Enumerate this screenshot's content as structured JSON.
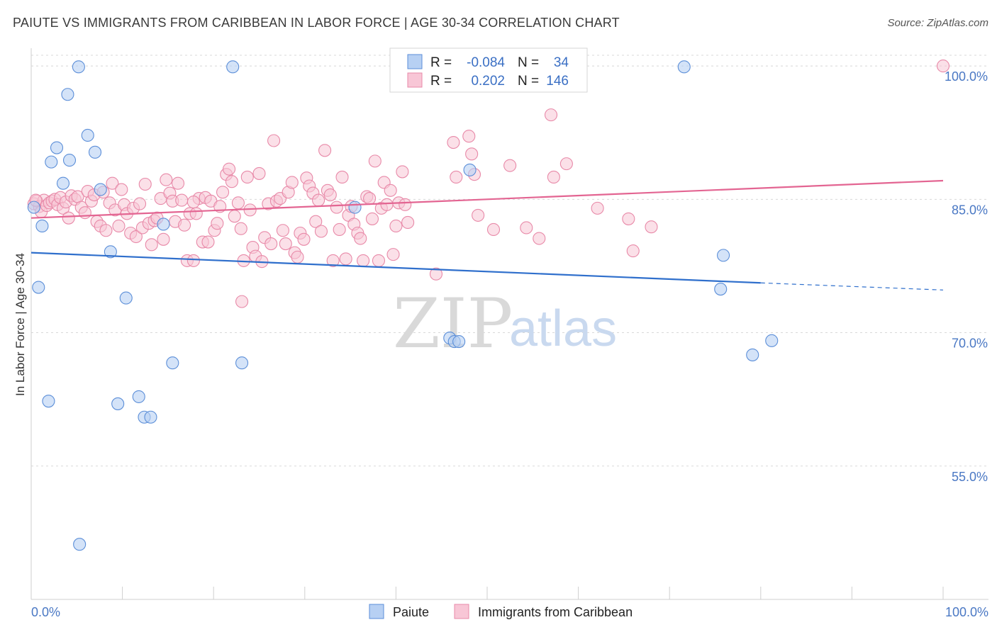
{
  "header": {
    "title": "PAIUTE VS IMMIGRANTS FROM CARIBBEAN IN LABOR FORCE | AGE 30-34 CORRELATION CHART",
    "source": "Source: ZipAtlas.com"
  },
  "watermark": {
    "zip": "ZIP",
    "atlas": "atlas"
  },
  "chart_data": {
    "type": "scatter",
    "title": "PAIUTE VS IMMIGRANTS FROM CARIBBEAN IN LABOR FORCE | AGE 30-34 CORRELATION CHART",
    "xlabel": "",
    "ylabel": "In Labor Force | Age 30-34",
    "xlim": [
      0,
      100
    ],
    "ylim": [
      40,
      102
    ],
    "x_tick_labels": [
      "0.0%",
      "100.0%"
    ],
    "y_ticks": [
      55,
      70,
      85,
      100
    ],
    "y_tick_labels": [
      "55.0%",
      "70.0%",
      "85.0%",
      "100.0%"
    ],
    "grid": true,
    "legend_position": "top-center",
    "legend": {
      "r_label": "R =",
      "n_label": "N =",
      "entries": [
        {
          "name": "Paiute",
          "r": "-0.084",
          "n": "34"
        },
        {
          "name": "Immigrants from Caribbean",
          "r": "0.202",
          "n": "146"
        }
      ]
    },
    "colors": {
      "paiute_fill": "#b7d0f3",
      "paiute_stroke": "#5b8ed8",
      "paiute_line": "#2f6fcc",
      "carib_fill": "#f8c6d6",
      "carib_stroke": "#e889a8",
      "carib_line": "#e36592",
      "tick_label": "#4a78c4",
      "grid": "#d8d8d8"
    },
    "series": [
      {
        "name": "Paiute",
        "trend": {
          "x0": 0,
          "y0": 79.0,
          "x1": 80,
          "y1": 75.6,
          "dash_to_x": 100,
          "dash_to_y": 74.8
        },
        "points": [
          [
            0.3,
            84.1
          ],
          [
            1.2,
            82.0
          ],
          [
            2.2,
            89.2
          ],
          [
            2.8,
            90.8
          ],
          [
            3.5,
            86.8
          ],
          [
            4.0,
            96.8
          ],
          [
            4.2,
            89.4
          ],
          [
            5.2,
            99.9
          ],
          [
            6.2,
            92.2
          ],
          [
            7.0,
            90.3
          ],
          [
            7.6,
            86.1
          ],
          [
            8.7,
            79.1
          ],
          [
            0.8,
            75.1
          ],
          [
            1.9,
            62.3
          ],
          [
            9.5,
            62.0
          ],
          [
            10.4,
            73.9
          ],
          [
            11.8,
            62.8
          ],
          [
            12.4,
            60.5
          ],
          [
            13.1,
            60.5
          ],
          [
            14.5,
            82.2
          ],
          [
            15.5,
            66.6
          ],
          [
            22.1,
            99.9
          ],
          [
            23.1,
            66.6
          ],
          [
            35.5,
            84.1
          ],
          [
            45.9,
            69.4
          ],
          [
            46.4,
            69.0
          ],
          [
            46.9,
            69.0
          ],
          [
            48.1,
            88.3
          ],
          [
            71.6,
            99.9
          ],
          [
            75.6,
            74.9
          ],
          [
            75.9,
            78.7
          ],
          [
            79.1,
            67.5
          ],
          [
            81.2,
            69.1
          ],
          [
            5.3,
            46.2
          ]
        ]
      },
      {
        "name": "Immigrants from Caribbean",
        "trend": {
          "x0": 0,
          "y0": 82.9,
          "x1": 100,
          "y1": 87.1
        },
        "points": [
          [
            0.3,
            84.5
          ],
          [
            0.6,
            84.8
          ],
          [
            0.9,
            84.2
          ],
          [
            1.1,
            83.6
          ],
          [
            1.4,
            84.9
          ],
          [
            1.7,
            84.3
          ],
          [
            2.0,
            84.6
          ],
          [
            2.3,
            84.8
          ],
          [
            2.6,
            85.0
          ],
          [
            2.9,
            84.4
          ],
          [
            3.2,
            85.2
          ],
          [
            3.5,
            84.0
          ],
          [
            3.8,
            84.7
          ],
          [
            4.1,
            82.9
          ],
          [
            4.4,
            85.4
          ],
          [
            4.8,
            85.0
          ],
          [
            5.1,
            85.3
          ],
          [
            5.5,
            84.1
          ],
          [
            5.9,
            83.5
          ],
          [
            6.2,
            85.9
          ],
          [
            6.6,
            84.8
          ],
          [
            6.9,
            85.5
          ],
          [
            7.2,
            82.5
          ],
          [
            7.6,
            82.0
          ],
          [
            7.9,
            85.8
          ],
          [
            8.2,
            81.5
          ],
          [
            8.6,
            84.6
          ],
          [
            8.9,
            86.8
          ],
          [
            9.2,
            83.8
          ],
          [
            9.6,
            82.0
          ],
          [
            9.9,
            86.1
          ],
          [
            10.2,
            84.4
          ],
          [
            10.5,
            83.4
          ],
          [
            10.9,
            81.2
          ],
          [
            11.2,
            84.0
          ],
          [
            11.5,
            80.8
          ],
          [
            11.9,
            84.5
          ],
          [
            12.2,
            81.8
          ],
          [
            12.5,
            86.7
          ],
          [
            12.9,
            82.3
          ],
          [
            13.2,
            79.9
          ],
          [
            13.5,
            82.6
          ],
          [
            13.8,
            82.9
          ],
          [
            14.2,
            85.1
          ],
          [
            14.5,
            80.5
          ],
          [
            14.8,
            87.2
          ],
          [
            15.2,
            85.7
          ],
          [
            15.5,
            84.8
          ],
          [
            15.8,
            82.5
          ],
          [
            16.1,
            86.8
          ],
          [
            16.5,
            84.9
          ],
          [
            16.8,
            82.1
          ],
          [
            17.1,
            78.1
          ],
          [
            17.4,
            83.4
          ],
          [
            17.8,
            78.1
          ],
          [
            18.1,
            83.4
          ],
          [
            18.4,
            85.1
          ],
          [
            18.8,
            80.2
          ],
          [
            19.1,
            85.2
          ],
          [
            19.4,
            80.2
          ],
          [
            19.7,
            84.8
          ],
          [
            20.1,
            81.5
          ],
          [
            20.4,
            82.3
          ],
          [
            20.7,
            84.2
          ],
          [
            21.0,
            85.8
          ],
          [
            21.4,
            87.8
          ],
          [
            21.7,
            88.4
          ],
          [
            22.0,
            87.0
          ],
          [
            22.3,
            83.1
          ],
          [
            22.7,
            84.6
          ],
          [
            23.0,
            81.7
          ],
          [
            23.3,
            78.1
          ],
          [
            23.7,
            87.5
          ],
          [
            24.0,
            83.8
          ],
          [
            24.3,
            79.6
          ],
          [
            24.6,
            78.6
          ],
          [
            25.0,
            87.9
          ],
          [
            25.3,
            78.0
          ],
          [
            25.6,
            80.7
          ],
          [
            26.0,
            84.5
          ],
          [
            26.3,
            80.0
          ],
          [
            26.6,
            91.6
          ],
          [
            26.9,
            84.8
          ],
          [
            27.3,
            85.1
          ],
          [
            27.6,
            81.5
          ],
          [
            27.9,
            80.0
          ],
          [
            28.2,
            85.8
          ],
          [
            28.6,
            86.9
          ],
          [
            28.9,
            79.0
          ],
          [
            29.2,
            78.5
          ],
          [
            29.5,
            81.2
          ],
          [
            29.9,
            80.5
          ],
          [
            30.2,
            87.4
          ],
          [
            30.5,
            86.5
          ],
          [
            30.9,
            85.7
          ],
          [
            31.2,
            82.5
          ],
          [
            31.5,
            84.9
          ],
          [
            31.8,
            81.4
          ],
          [
            32.2,
            90.5
          ],
          [
            32.5,
            86.0
          ],
          [
            32.8,
            85.5
          ],
          [
            33.1,
            78.1
          ],
          [
            33.5,
            84.1
          ],
          [
            33.8,
            81.6
          ],
          [
            34.1,
            87.5
          ],
          [
            34.5,
            78.3
          ],
          [
            34.8,
            83.2
          ],
          [
            35.1,
            84.2
          ],
          [
            35.4,
            82.2
          ],
          [
            35.8,
            81.2
          ],
          [
            36.1,
            80.6
          ],
          [
            36.4,
            78.1
          ],
          [
            36.8,
            85.3
          ],
          [
            37.1,
            85.1
          ],
          [
            37.4,
            82.8
          ],
          [
            37.7,
            89.3
          ],
          [
            38.1,
            78.1
          ],
          [
            38.4,
            84.0
          ],
          [
            38.7,
            86.9
          ],
          [
            39.0,
            84.4
          ],
          [
            39.4,
            86.0
          ],
          [
            39.7,
            78.8
          ],
          [
            40.0,
            82.0
          ],
          [
            40.3,
            84.6
          ],
          [
            40.7,
            88.1
          ],
          [
            41.0,
            84.4
          ],
          [
            41.3,
            82.4
          ],
          [
            44.4,
            76.6
          ],
          [
            46.3,
            91.4
          ],
          [
            46.6,
            87.5
          ],
          [
            48.0,
            92.1
          ],
          [
            48.3,
            90.1
          ],
          [
            48.6,
            87.8
          ],
          [
            49.0,
            83.2
          ],
          [
            50.7,
            81.6
          ],
          [
            52.5,
            88.8
          ],
          [
            54.3,
            81.8
          ],
          [
            55.7,
            80.6
          ],
          [
            57.0,
            94.5
          ],
          [
            57.3,
            87.5
          ],
          [
            58.7,
            89.0
          ],
          [
            62.1,
            84.0
          ],
          [
            65.5,
            82.8
          ],
          [
            66.0,
            79.2
          ],
          [
            68.0,
            81.9
          ],
          [
            100,
            100
          ],
          [
            0.5,
            84.9
          ],
          [
            17.8,
            84.7
          ],
          [
            23.1,
            73.5
          ]
        ]
      }
    ]
  }
}
